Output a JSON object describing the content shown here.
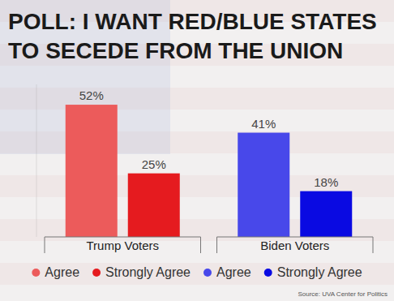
{
  "chart_data": {
    "type": "bar",
    "title": "POLL: I WANT RED/BLUE STATES TO SECEDE FROM THE UNION",
    "categories": [
      "Trump Voters",
      "Biden Voters"
    ],
    "series": [
      {
        "name": "Agree",
        "colors": [
          "#ec5b5b",
          "#4848ea"
        ],
        "values": [
          52,
          41
        ],
        "value_labels": [
          "52%",
          "41%"
        ]
      },
      {
        "name": "Strongly Agree",
        "colors": [
          "#e51b1f",
          "#0a0ae2"
        ],
        "values": [
          25,
          18
        ],
        "value_labels": [
          "25%",
          "18%"
        ]
      }
    ],
    "ylim": [
      0,
      60
    ],
    "data_labels": true,
    "tick_labels": "x",
    "grid": false,
    "legend": "bottom",
    "annotations": [
      "Source: UVA Center for Politics"
    ]
  }
}
